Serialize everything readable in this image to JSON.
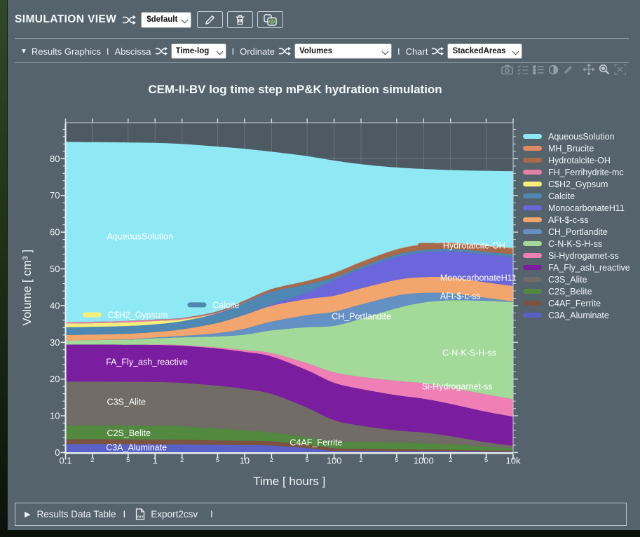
{
  "window": {
    "title": "SIMULATION VIEW",
    "preset_value": "$default"
  },
  "toolbar": {
    "section_label": "Results Graphics",
    "separator": "I",
    "abscissa_label": "Abscissa",
    "abscissa_value": "Time-log",
    "ordinate_label": "Ordinate",
    "ordinate_value": "Volumes",
    "chart_label": "Chart",
    "chart_value": "StackedAreas"
  },
  "chart_toolbar_icons": [
    "camera",
    "checklist",
    "list",
    "contrast",
    "pencil",
    "pan",
    "zoom",
    "fullscreen"
  ],
  "footer": {
    "results_table_label": "Results Data Table",
    "export_label": "Export2csv",
    "separator": "I"
  },
  "chart_data": {
    "type": "area",
    "stacked": true,
    "x_scale": "log",
    "title": "CEM-II-BV log time step mP&K hydration simulation",
    "xlabel": "Time [ hours ]",
    "ylabel": "Volume [ cm³ ]",
    "xlim": [
      0.1,
      10000
    ],
    "ylim": [
      0,
      89.8
    ],
    "grid": true,
    "legend_position": "right",
    "x": [
      0.1,
      0.2,
      0.5,
      1,
      2,
      5,
      10,
      20,
      50,
      100,
      200,
      500,
      1000,
      2000,
      5000,
      10000
    ],
    "x_ticks": {
      "values": [
        0.1,
        0.2,
        0.5,
        1,
        2,
        5,
        10,
        20,
        50,
        100,
        200,
        500,
        1000,
        2000,
        5000,
        10000
      ],
      "labels": [
        "0.1",
        "2",
        "5",
        "1",
        "2",
        "5",
        "10",
        "2",
        "5",
        "100",
        "2",
        "5",
        "1000",
        "2",
        "5",
        "10k"
      ],
      "minor": [
        false,
        true,
        true,
        false,
        true,
        true,
        false,
        true,
        true,
        false,
        true,
        true,
        false,
        true,
        true,
        false
      ]
    },
    "y_major_tick_step": 10,
    "y_minor_tick_step": 2,
    "series": [
      {
        "name": "C3A_Aluminate",
        "color": "#5a61c6",
        "values": [
          2.3,
          2.3,
          2.25,
          2.2,
          2.2,
          2.1,
          2.0,
          1.9,
          1.2,
          0.45,
          0.4,
          0.35,
          0.3,
          0.3,
          0.25,
          0.25
        ]
      },
      {
        "name": "C4AF_Ferrite",
        "color": "#7c5340",
        "values": [
          1.3,
          1.3,
          1.3,
          1.3,
          1.25,
          1.2,
          1.2,
          1.15,
          0.9,
          0.75,
          0.65,
          0.55,
          0.5,
          0.45,
          0.35,
          0.3
        ]
      },
      {
        "name": "C2S_Belite",
        "color": "#528840",
        "values": [
          3.8,
          3.8,
          3.8,
          3.8,
          3.7,
          3.3,
          2.9,
          2.4,
          2.1,
          1.9,
          1.85,
          1.8,
          1.75,
          1.5,
          1.0,
          0.6
        ]
      },
      {
        "name": "C3S_Alite",
        "color": "#716d66",
        "values": [
          11.9,
          11.9,
          11.9,
          11.9,
          11.8,
          11.6,
          11.2,
          10.5,
          8.0,
          5.7,
          4.4,
          3.3,
          2.9,
          2.2,
          1.2,
          0.7
        ]
      },
      {
        "name": "FA_Fly_ash_reactive",
        "color": "#7b1d9f",
        "values": [
          10.1,
          10.1,
          10.1,
          10.1,
          10.1,
          10.1,
          10.1,
          10.2,
          10.2,
          10.2,
          10.0,
          9.6,
          9.2,
          8.8,
          8.3,
          7.9
        ]
      },
      {
        "name": "Si-Hydrogarnet-ss",
        "color": "#ef7fb5",
        "values": [
          0,
          0,
          0,
          0.1,
          0.2,
          0.3,
          0.5,
          0.9,
          1.9,
          2.8,
          3.3,
          3.9,
          4.2,
          4.4,
          4.7,
          4.8
        ]
      },
      {
        "name": "C-N-K-S-H-ss",
        "color": "#a3da99",
        "values": [
          1.1,
          1.2,
          1.4,
          1.7,
          2.1,
          3.0,
          4.2,
          6.2,
          9.8,
          12.7,
          15.8,
          19.8,
          22.0,
          23.8,
          25.5,
          26.4
        ]
      },
      {
        "name": "CH_Portlandite",
        "color": "#6490c4",
        "values": [
          0,
          0,
          0.1,
          0.2,
          0.4,
          0.9,
          1.6,
          2.4,
          3.3,
          3.8,
          3.9,
          3.4,
          2.6,
          1.9,
          0.8,
          0.2
        ]
      },
      {
        "name": "AFt-$-c-ss",
        "color": "#f2a66e",
        "values": [
          1.5,
          1.5,
          1.5,
          1.5,
          1.8,
          2.8,
          3.8,
          4.3,
          4.4,
          4.4,
          4.4,
          4.3,
          4.3,
          4.3,
          4.2,
          4.2
        ]
      },
      {
        "name": "MonocarbonateH11",
        "color": "#6c66dd",
        "values": [
          0,
          0,
          0,
          0,
          0,
          0,
          0.1,
          0.3,
          1.8,
          4.2,
          5.2,
          6.2,
          6.7,
          7.1,
          7.6,
          7.8
        ]
      },
      {
        "name": "Calcite",
        "color": "#4d87b2",
        "values": [
          2.1,
          2.1,
          2.1,
          2.1,
          2.2,
          2.6,
          3.2,
          3.5,
          2.2,
          0.8,
          0.7,
          0.7,
          0.7,
          0.7,
          0.75,
          0.8
        ]
      },
      {
        "name": "C$H2_Gypsum",
        "color": "#f4ef7d",
        "values": [
          1.0,
          1.0,
          1.0,
          0.9,
          0.5,
          0.05,
          0,
          0,
          0,
          0,
          0,
          0,
          0,
          0,
          0,
          0
        ]
      },
      {
        "name": "FH_Ferrihydrite-mc",
        "color": "#e47fa7",
        "values": [
          0.4,
          0.4,
          0.4,
          0.35,
          0.3,
          0.2,
          0.1,
          0.05,
          0,
          0,
          0,
          0,
          0,
          0,
          0,
          0
        ]
      },
      {
        "name": "Hydrotalcite-OH",
        "color": "#a96a4a",
        "values": [
          0,
          0,
          0,
          0.05,
          0.1,
          0.3,
          0.5,
          0.7,
          0.9,
          1.1,
          1.2,
          1.3,
          1.4,
          1.45,
          1.5,
          1.5
        ]
      },
      {
        "name": "MH_Brucite",
        "color": "#e08a64",
        "values": [
          0,
          0,
          0,
          0,
          0,
          0,
          0,
          0,
          0.05,
          0.1,
          0.1,
          0.15,
          0.15,
          0.2,
          0.2,
          0.2
        ]
      },
      {
        "name": "AqueousSolution",
        "color": "#8fe9f4",
        "values": [
          49.1,
          48.9,
          48.55,
          48.1,
          47.35,
          44.85,
          41.3,
          37.4,
          33.95,
          30.6,
          26.6,
          22.25,
          20.5,
          19.8,
          20.35,
          20.95
        ]
      }
    ],
    "annotations": [
      {
        "text": "AqueousSolution",
        "x": 0.29,
        "y": 58.9,
        "swatch": false
      },
      {
        "text": "C$H2_Gypsum",
        "x": 0.155,
        "y": 37.5,
        "swatch": true
      },
      {
        "text": "Calcite",
        "x": 2.3,
        "y": 40.2,
        "swatch": true
      },
      {
        "text": "Hydrotalcite-OH",
        "x": 860,
        "y": 56.4,
        "swatch": true
      },
      {
        "text": "MonocarbonateH11",
        "x": 1530,
        "y": 47.6,
        "swatch": false
      },
      {
        "text": "AFt-$-c-ss",
        "x": 1530,
        "y": 42.7,
        "swatch": false
      },
      {
        "text": "CH_Portlandite",
        "x": 94,
        "y": 37.1,
        "swatch": false
      },
      {
        "text": "C-N-K-S-H-ss",
        "x": 1620,
        "y": 27.2,
        "swatch": false
      },
      {
        "text": "Si-Hydrogarnet-ss",
        "x": 500,
        "y": 18.0,
        "swatch": true
      },
      {
        "text": "FA_Fly_ash_reactive",
        "x": 0.283,
        "y": 24.7,
        "swatch": false
      },
      {
        "text": "C3S_Alite",
        "x": 0.29,
        "y": 13.8,
        "swatch": false
      },
      {
        "text": "C2S_Belite",
        "x": 0.29,
        "y": 5.3,
        "swatch": false
      },
      {
        "text": "C3A_Aluminate",
        "x": 0.283,
        "y": 1.45,
        "swatch": false
      },
      {
        "text": "C4AF_Ferrite",
        "x": 32,
        "y": 2.8,
        "swatch": false
      }
    ],
    "colors": {
      "plot_bg": "#4d5963",
      "panel_bg": "#55636d",
      "axis": "#ecf2f5",
      "grid": "rgba(255,255,255,0.16)",
      "tick_label": "#f2f6f8"
    }
  }
}
